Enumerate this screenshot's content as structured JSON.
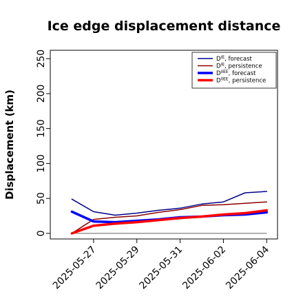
{
  "chart_data": {
    "type": "line",
    "title": "Ice edge displacement distance",
    "xlabel": "",
    "ylabel": "Displacement (km)",
    "ylim": [
      -8,
      262
    ],
    "yticks": [
      0,
      50,
      100,
      150,
      200,
      250
    ],
    "x_dates": [
      "2025-05-26",
      "2025-05-27",
      "2025-05-28",
      "2025-05-29",
      "2025-05-30",
      "2025-05-31",
      "2025-06-01",
      "2025-06-02",
      "2025-06-03",
      "2025-06-04"
    ],
    "x_range": [
      "2025-05-25",
      "2025-06-04T12:00"
    ],
    "xticks": [
      "2025-05-27",
      "2025-05-29",
      "2025-05-31",
      "2025-06-02",
      "2025-06-04"
    ],
    "xtick_colors": [
      "#228B22",
      "#000000",
      "#000000",
      "#000000",
      "#000000"
    ],
    "reference_line": {
      "y": 0,
      "x_from": "2025-05-26",
      "x_to": "2025-06-04",
      "color": "#808080"
    },
    "legend_position": "top-right",
    "grid": false,
    "series": [
      {
        "name": "forecast",
        "superscript": "IE",
        "color": "#00008B",
        "width": 1.5,
        "values": [
          49,
          31,
          26,
          29,
          33,
          36,
          42,
          45,
          58,
          60
        ]
      },
      {
        "name": "persistence",
        "superscript": "IE",
        "color": "#8B0000",
        "width": 1.5,
        "values": [
          0,
          20,
          23,
          25,
          30,
          34,
          40,
          41,
          43,
          45
        ]
      },
      {
        "name": "forecast",
        "superscript": "IIEE",
        "color": "#0000FF",
        "width": 3.5,
        "values": [
          31,
          17,
          16,
          18,
          20,
          23,
          24,
          26,
          27,
          30
        ]
      },
      {
        "name": "persistence",
        "superscript": "IIEE",
        "color": "#FF0000",
        "width": 3.5,
        "values": [
          0,
          11,
          14,
          16,
          19,
          22,
          24,
          27,
          29,
          33
        ]
      }
    ]
  }
}
